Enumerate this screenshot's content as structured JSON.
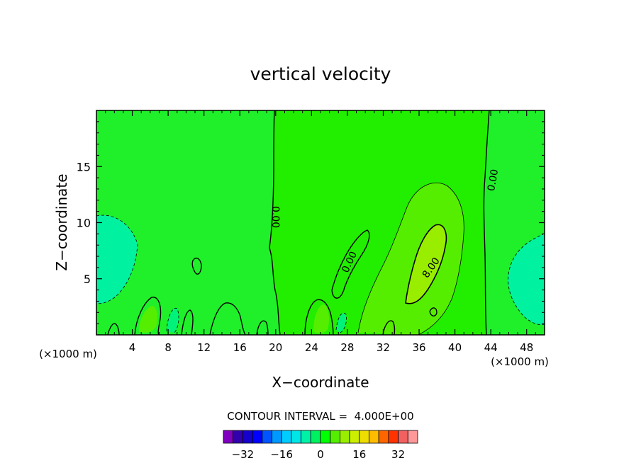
{
  "chart_data": {
    "type": "contour",
    "title": "vertical velocity",
    "xlabel": "X−coordinate",
    "ylabel": "Z−coordinate",
    "x_unit_left": "(×1000 m)",
    "x_unit_right": "(×1000 m)",
    "xlim": [
      0,
      50
    ],
    "ylim": [
      0,
      20
    ],
    "x_ticks": [
      4,
      8,
      12,
      16,
      20,
      24,
      28,
      32,
      36,
      40,
      44,
      48
    ],
    "x_tick_labels": [
      "4",
      "8",
      "12",
      "16",
      "20",
      "24",
      "28",
      "32",
      "36",
      "40",
      "44",
      "48"
    ],
    "y_ticks": [
      5,
      10,
      15
    ],
    "y_tick_labels": [
      "5",
      "10",
      "15"
    ],
    "contour_labels": [
      {
        "text": "0.00",
        "x": 20.0,
        "y": 10.5,
        "angle": 90
      },
      {
        "text": "0.00",
        "x": 44.2,
        "y": 13.8,
        "angle": -80
      },
      {
        "text": "0.00",
        "x": 28.2,
        "y": 6.5,
        "angle": -65
      },
      {
        "text": "8.00",
        "x": 37.3,
        "y": 6.0,
        "angle": -55
      }
    ],
    "contour_interval_text": "CONTOUR INTERVAL =  4.000E+00",
    "colorbar": {
      "levels": [
        -36,
        -32,
        -28,
        -24,
        -20,
        -16,
        -12,
        -8,
        -4,
        0,
        4,
        8,
        12,
        16,
        20,
        24,
        28,
        32,
        36
      ],
      "colors": [
        "#7f00bf",
        "#3300ad",
        "#1500cc",
        "#0000ff",
        "#0055ff",
        "#0099ff",
        "#00ccff",
        "#00e6e6",
        "#00f2a6",
        "#00f260",
        "#00ff00",
        "#55ee00",
        "#99ee00",
        "#ccee00",
        "#eedd00",
        "#ffbb00",
        "#ff6600",
        "#ff3300",
        "#f26060",
        "#ff9999"
      ],
      "tick_values": [
        -32,
        -16,
        0,
        16,
        32
      ],
      "tick_labels": [
        "−32",
        "−16",
        "0",
        "16",
        "32"
      ]
    },
    "fill_colors": {
      "background": "#1ff02a",
      "neg_light": "#00f27a",
      "neg_strong": "#00f2a0",
      "zero_band": "#22ee00",
      "pos_4": "#55ee00",
      "pos_8": "#99ee00"
    }
  }
}
